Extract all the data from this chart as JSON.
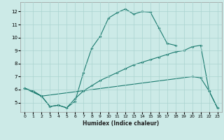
{
  "title": "",
  "xlabel": "Humidex (Indice chaleur)",
  "bg_color": "#cceae7",
  "grid_color": "#aad4d0",
  "line_color": "#1a7a6e",
  "xlim": [
    -0.5,
    23.5
  ],
  "ylim": [
    4.3,
    12.7
  ],
  "yticks": [
    5,
    6,
    7,
    8,
    9,
    10,
    11,
    12
  ],
  "xticks": [
    0,
    1,
    2,
    3,
    4,
    5,
    6,
    7,
    8,
    9,
    10,
    11,
    12,
    13,
    14,
    15,
    16,
    17,
    18,
    19,
    20,
    21,
    22,
    23
  ],
  "line1_x": [
    0,
    1,
    2,
    3,
    4,
    5,
    6,
    7,
    8,
    9,
    10,
    11,
    12,
    13,
    14,
    15,
    16,
    17,
    18
  ],
  "line1_y": [
    6.1,
    5.9,
    5.5,
    4.7,
    4.8,
    4.6,
    5.1,
    7.3,
    9.2,
    10.1,
    11.5,
    11.9,
    12.2,
    11.8,
    12.0,
    11.95,
    10.75,
    9.55,
    9.4
  ],
  "line2_x": [
    0,
    2,
    20,
    21,
    22,
    23
  ],
  "line2_y": [
    6.1,
    5.5,
    7.0,
    6.9,
    5.9,
    4.6
  ],
  "line3_x": [
    0,
    2,
    3,
    4,
    5,
    6,
    7,
    8,
    9,
    10,
    11,
    12,
    13,
    14,
    15,
    16,
    17,
    18,
    19,
    20,
    21,
    22,
    23
  ],
  "line3_y": [
    6.1,
    5.5,
    4.7,
    4.8,
    4.6,
    5.3,
    5.9,
    6.3,
    6.7,
    7.0,
    7.3,
    7.6,
    7.9,
    8.1,
    8.3,
    8.5,
    8.7,
    8.9,
    9.0,
    9.3,
    9.4,
    5.9,
    4.6
  ]
}
